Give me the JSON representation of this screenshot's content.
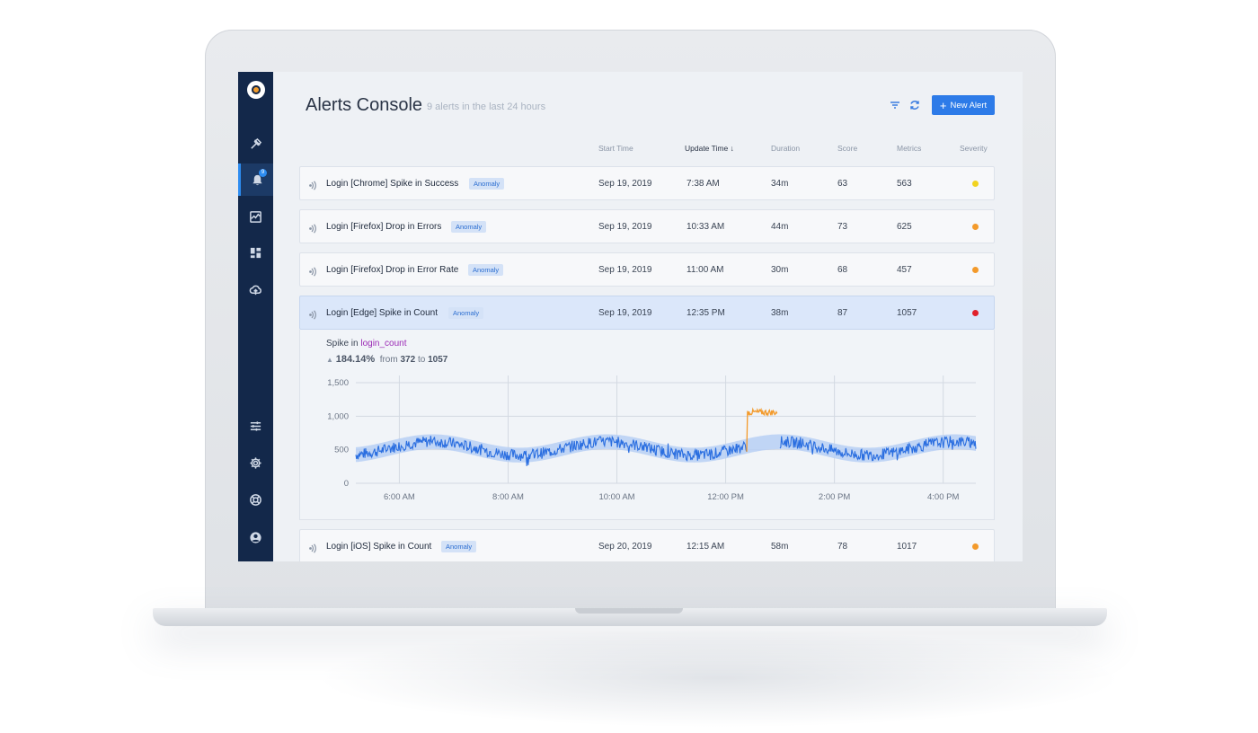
{
  "header": {
    "title": "Alerts Console",
    "subtitle": "9 alerts in the last 24 hours",
    "new_alert_label": "New Alert"
  },
  "nav": {
    "badge": "9",
    "icons": [
      "explore-icon",
      "alerts-icon",
      "activity-icon",
      "dashboard-icon",
      "cloud-upload-icon",
      "sliders-icon",
      "gear-icon",
      "support-icon",
      "user-icon"
    ]
  },
  "columns": {
    "start_time": "Start Time",
    "update_time": "Update Time",
    "duration": "Duration",
    "score": "Score",
    "metrics": "Metrics",
    "severity": "Severity"
  },
  "colors": {
    "yellow": "#f1d320",
    "orange": "#f39a2b",
    "red": "#e0202a",
    "accent": "#2d7be8"
  },
  "alerts": [
    {
      "name": "Login [Chrome] Spike in Success",
      "tag": "Anomaly",
      "start": "Sep 19, 2019",
      "update": "7:38 AM",
      "duration": "34m",
      "score": "63",
      "metrics": "563",
      "severity": "yellow"
    },
    {
      "name": "Login [Firefox] Drop in Errors",
      "tag": "Anomaly",
      "start": "Sep 19, 2019",
      "update": "10:33 AM",
      "duration": "44m",
      "score": "73",
      "metrics": "625",
      "severity": "orange"
    },
    {
      "name": "Login [Firefox] Drop in Error Rate",
      "tag": "Anomaly",
      "start": "Sep 19, 2019",
      "update": "11:00 AM",
      "duration": "30m",
      "score": "68",
      "metrics": "457",
      "severity": "orange"
    },
    {
      "name": "Login [Edge] Spike in Count",
      "tag": "Anomaly",
      "start": "Sep 19, 2019",
      "update": "12:35 PM",
      "duration": "38m",
      "score": "87",
      "metrics": "1057",
      "severity": "red"
    },
    {
      "name": "Login [iOS] Spike in Count",
      "tag": "Anomaly",
      "start": "Sep 20, 2019",
      "update": "12:15 AM",
      "duration": "58m",
      "score": "78",
      "metrics": "1017",
      "severity": "orange"
    }
  ],
  "detail": {
    "spike_prefix": "Spike in",
    "metric": "login_count",
    "percent": "184.14%",
    "from_label": "from",
    "from_value": "372",
    "to_label": "to",
    "to_value": "1057"
  },
  "chart_data": {
    "type": "line",
    "yticks": [
      "1,500",
      "1,000",
      "500",
      "0"
    ],
    "xticks": [
      "6:00 AM",
      "8:00 AM",
      "10:00 AM",
      "12:00 PM",
      "2:00 PM",
      "4:00 PM"
    ],
    "ylim": [
      0,
      1500
    ],
    "xlim_hours": [
      5.2,
      16.6
    ],
    "baseline_amplitude": 100,
    "baseline_level": 520,
    "band_halfwidth": 110,
    "anomaly": {
      "start_hour": 12.4,
      "end_hour": 12.95,
      "level": 1057,
      "from": 372
    }
  }
}
